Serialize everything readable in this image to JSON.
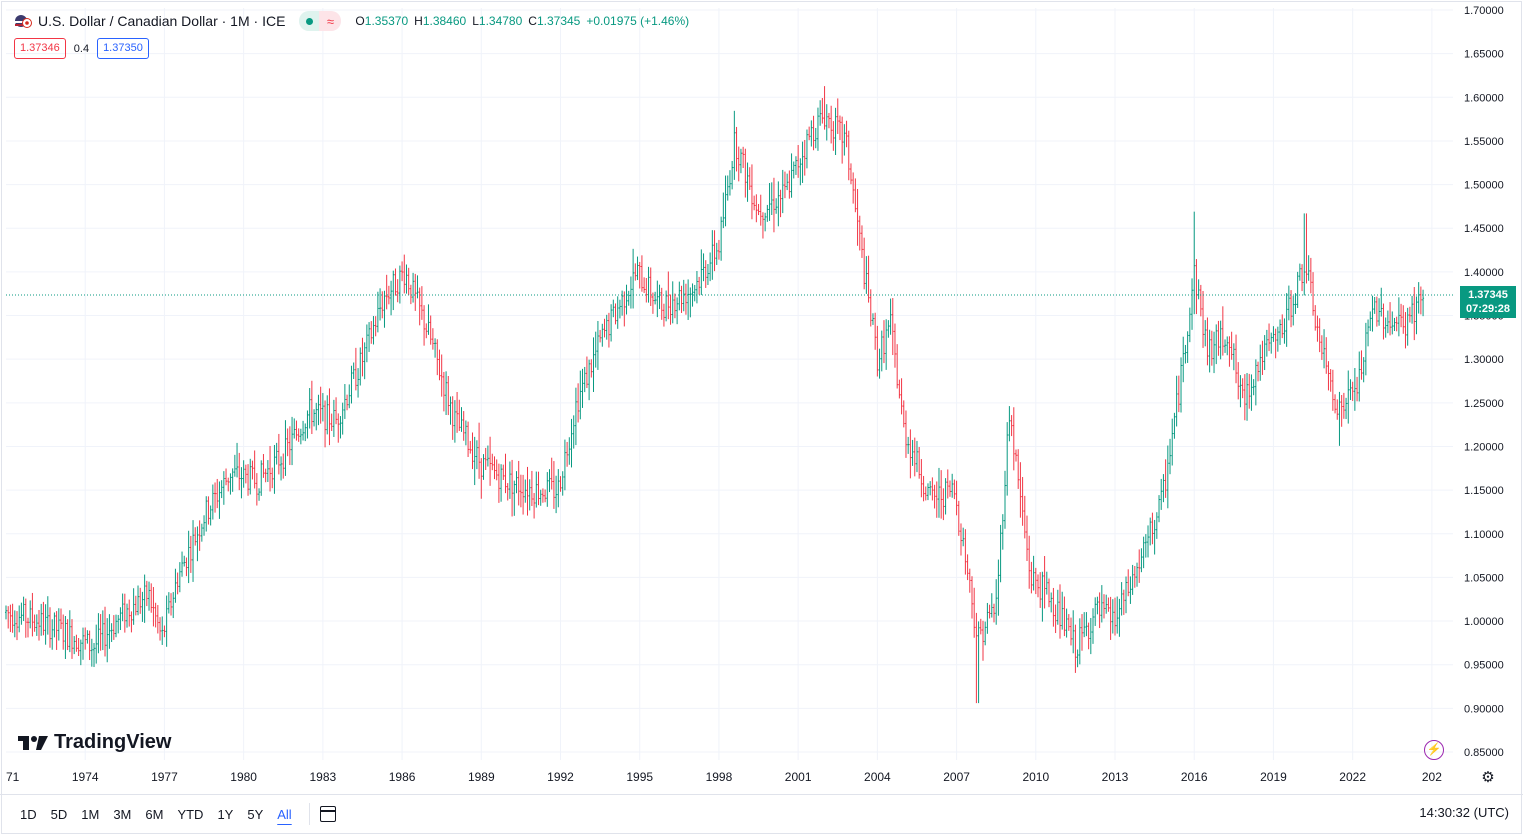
{
  "header": {
    "title": "U.S. Dollar / Canadian Dollar · 1M · ICE",
    "ohlc": {
      "o_label": "O",
      "o": "1.35370",
      "h_label": "H",
      "h": "1.38460",
      "l_label": "L",
      "l": "1.34780",
      "c_label": "C",
      "c": "1.37345",
      "change": "+0.01975 (+1.46%)"
    }
  },
  "quotes": {
    "sell": "1.37346",
    "spread": "0.4",
    "buy": "1.37350"
  },
  "price_tag": {
    "price": "1.37345",
    "countdown": "07:29:28"
  },
  "logo": {
    "text": "TradingView"
  },
  "bottom": {
    "ranges": [
      "1D",
      "5D",
      "1M",
      "3M",
      "6M",
      "YTD",
      "1Y",
      "5Y",
      "All"
    ],
    "active_range": "All",
    "clock": "14:30:32 (UTC)"
  },
  "icons": {
    "flag": "us-canada-flag-icon",
    "calendar": "calendar-icon",
    "settings": "gear-icon",
    "bolt": "lightning-icon"
  },
  "colors": {
    "up": "#089981",
    "down": "#f23645",
    "accent": "#2962ff",
    "grid": "#f0f3fa"
  },
  "chart_data": {
    "type": "candlestick",
    "title": "U.S. Dollar / Canadian Dollar",
    "interval": "1M",
    "exchange": "ICE",
    "x_ticks": [
      "71",
      "1974",
      "1977",
      "1980",
      "1983",
      "1986",
      "1989",
      "1992",
      "1995",
      "1998",
      "2001",
      "2004",
      "2007",
      "2010",
      "2013",
      "2016",
      "2019",
      "2022",
      "202"
    ],
    "y_ticks": [
      "1.70000",
      "1.65000",
      "1.60000",
      "1.55000",
      "1.50000",
      "1.45000",
      "1.40000",
      "1.35000",
      "1.30000",
      "1.25000",
      "1.20000",
      "1.15000",
      "1.10000",
      "1.05000",
      "1.00000",
      "0.95000",
      "0.90000",
      "0.85000"
    ],
    "ylim": [
      0.85,
      1.7
    ],
    "last_price": 1.37345,
    "grid": true,
    "key_points": [
      {
        "x": 1971.0,
        "y": 1.01
      },
      {
        "x": 1972.2,
        "y": 1.0
      },
      {
        "x": 1973.0,
        "y": 0.99
      },
      {
        "x": 1974.3,
        "y": 0.97
      },
      {
        "x": 1975.5,
        "y": 1.01
      },
      {
        "x": 1976.4,
        "y": 1.03
      },
      {
        "x": 1976.9,
        "y": 0.98
      },
      {
        "x": 1977.5,
        "y": 1.05
      },
      {
        "x": 1978.5,
        "y": 1.12
      },
      {
        "x": 1979.5,
        "y": 1.17
      },
      {
        "x": 1980.5,
        "y": 1.16
      },
      {
        "x": 1981.5,
        "y": 1.19
      },
      {
        "x": 1982.5,
        "y": 1.24
      },
      {
        "x": 1983.5,
        "y": 1.23
      },
      {
        "x": 1984.5,
        "y": 1.3
      },
      {
        "x": 1985.3,
        "y": 1.37
      },
      {
        "x": 1986.1,
        "y": 1.4
      },
      {
        "x": 1987.0,
        "y": 1.33
      },
      {
        "x": 1988.0,
        "y": 1.23
      },
      {
        "x": 1989.0,
        "y": 1.18
      },
      {
        "x": 1990.0,
        "y": 1.16
      },
      {
        "x": 1991.0,
        "y": 1.15
      },
      {
        "x": 1991.9,
        "y": 1.15
      },
      {
        "x": 1992.6,
        "y": 1.25
      },
      {
        "x": 1993.5,
        "y": 1.32
      },
      {
        "x": 1994.9,
        "y": 1.4
      },
      {
        "x": 1995.8,
        "y": 1.36
      },
      {
        "x": 1997.0,
        "y": 1.38
      },
      {
        "x": 1998.0,
        "y": 1.43
      },
      {
        "x": 1998.6,
        "y": 1.55
      },
      {
        "x": 1999.5,
        "y": 1.47
      },
      {
        "x": 2000.5,
        "y": 1.49
      },
      {
        "x": 2001.5,
        "y": 1.56
      },
      {
        "x": 2002.0,
        "y": 1.58
      },
      {
        "x": 2002.8,
        "y": 1.55
      },
      {
        "x": 2003.5,
        "y": 1.4
      },
      {
        "x": 2004.0,
        "y": 1.3
      },
      {
        "x": 2004.5,
        "y": 1.34
      },
      {
        "x": 2005.0,
        "y": 1.22
      },
      {
        "x": 2006.0,
        "y": 1.14
      },
      {
        "x": 2006.9,
        "y": 1.15
      },
      {
        "x": 2007.3,
        "y": 1.08
      },
      {
        "x": 2007.8,
        "y": 0.98
      },
      {
        "x": 2008.5,
        "y": 1.02
      },
      {
        "x": 2009.0,
        "y": 1.24
      },
      {
        "x": 2009.8,
        "y": 1.05
      },
      {
        "x": 2010.5,
        "y": 1.03
      },
      {
        "x": 2011.5,
        "y": 0.97
      },
      {
        "x": 2012.3,
        "y": 1.01
      },
      {
        "x": 2013.0,
        "y": 1.0
      },
      {
        "x": 2014.0,
        "y": 1.07
      },
      {
        "x": 2014.8,
        "y": 1.14
      },
      {
        "x": 2015.5,
        "y": 1.28
      },
      {
        "x": 2016.0,
        "y": 1.4
      },
      {
        "x": 2016.5,
        "y": 1.31
      },
      {
        "x": 2017.3,
        "y": 1.33
      },
      {
        "x": 2017.8,
        "y": 1.25
      },
      {
        "x": 2018.5,
        "y": 1.3
      },
      {
        "x": 2019.3,
        "y": 1.33
      },
      {
        "x": 2020.2,
        "y": 1.41
      },
      {
        "x": 2020.8,
        "y": 1.31
      },
      {
        "x": 2021.5,
        "y": 1.24
      },
      {
        "x": 2022.2,
        "y": 1.27
      },
      {
        "x": 2022.8,
        "y": 1.36
      },
      {
        "x": 2023.5,
        "y": 1.34
      },
      {
        "x": 2024.0,
        "y": 1.34
      },
      {
        "x": 2024.7,
        "y": 1.37345
      }
    ],
    "extremes": [
      {
        "x": 2002.0,
        "high": 1.6128
      },
      {
        "x": 2007.8,
        "low": 0.906
      },
      {
        "x": 2016.0,
        "high": 1.469
      },
      {
        "x": 2020.2,
        "high": 1.467
      },
      {
        "x": 1986.1,
        "high": 1.4198
      },
      {
        "x": 1998.6,
        "high": 1.5845
      },
      {
        "x": 2021.5,
        "low": 1.2007
      },
      {
        "x": 2011.5,
        "low": 0.9406
      }
    ]
  }
}
